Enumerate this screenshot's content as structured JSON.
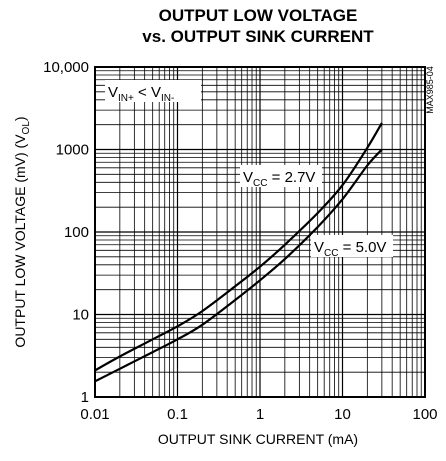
{
  "chart_data": {
    "type": "line",
    "title_lines": [
      "OUTPUT LOW VOLTAGE",
      "vs. OUTPUT SINK CURRENT"
    ],
    "xlabel": "OUTPUT SINK CURRENT (mA)",
    "ylabel": "OUTPUT LOW VOLTAGE (mV) (V",
    "ylabel_sub": "OL",
    "ylabel_end": ")",
    "x_scale": "log",
    "y_scale": "log",
    "xlim": [
      0.01,
      100
    ],
    "ylim": [
      1,
      10000
    ],
    "grid": true,
    "x_ticks": [
      0.01,
      0.1,
      1,
      10,
      100
    ],
    "x_tick_labels": [
      "0.01",
      "0.1",
      "1",
      "10",
      "100"
    ],
    "y_ticks": [
      1,
      10,
      100,
      1000,
      10000
    ],
    "y_tick_labels": [
      "1",
      "10",
      "100",
      "1000",
      "10,000"
    ],
    "series": [
      {
        "label_main": "V",
        "label_sub": "CC",
        "label_rest": " = 2.7V",
        "x": [
          0.01,
          0.02,
          0.05,
          0.1,
          0.2,
          0.5,
          1,
          2,
          5,
          10,
          20,
          30
        ],
        "y": [
          2.1,
          3.1,
          5.0,
          7.2,
          11.0,
          22,
          38,
          70,
          170,
          370,
          1050,
          2100
        ]
      },
      {
        "label_main": "V",
        "label_sub": "CC",
        "label_rest": " = 5.0V",
        "x": [
          0.01,
          0.02,
          0.05,
          0.1,
          0.2,
          0.5,
          1,
          2,
          5,
          10,
          20,
          30
        ],
        "y": [
          1.55,
          2.2,
          3.5,
          5.0,
          7.5,
          15,
          26,
          47,
          115,
          250,
          640,
          1000
        ]
      }
    ],
    "condition": {
      "v1": "V",
      "v1_sub": "IN+",
      "mid": " < V",
      "v2_sub": "IN-"
    },
    "part_code": "MAX985-04"
  }
}
